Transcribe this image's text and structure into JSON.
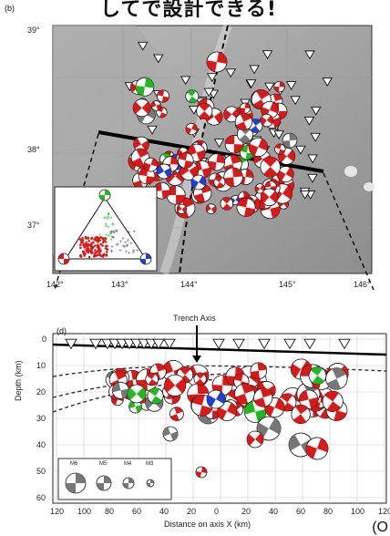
{
  "header": {
    "caption": "してで設計できる!"
  },
  "map_panel": {
    "label": "(b)",
    "lat_ticks": [
      "39°",
      "38°",
      "37°"
    ],
    "lon_ticks": [
      "142°",
      "143°",
      "144°",
      "145°",
      "146°"
    ]
  },
  "section_panel": {
    "label": "(d)",
    "trench_label": "Trench Axis",
    "y_axis_label": "Depth (km)",
    "x_axis_label": "Distance on axis X (km)",
    "y_ticks": [
      "0",
      "10",
      "20",
      "30",
      "40",
      "50",
      "60"
    ],
    "x_ticks": [
      "120",
      "100",
      "80",
      "60",
      "40",
      "20",
      "0",
      "20",
      "40",
      "60",
      "80",
      "100",
      "120"
    ],
    "magnitude_legend": [
      "M6",
      "M5",
      "M4",
      "M3"
    ]
  },
  "footer": {
    "text": "(O"
  },
  "colors": {
    "thrust": "#d81a1a",
    "strike_slip": "#22b822",
    "normal": "#2040d0",
    "other": "#777777"
  }
}
